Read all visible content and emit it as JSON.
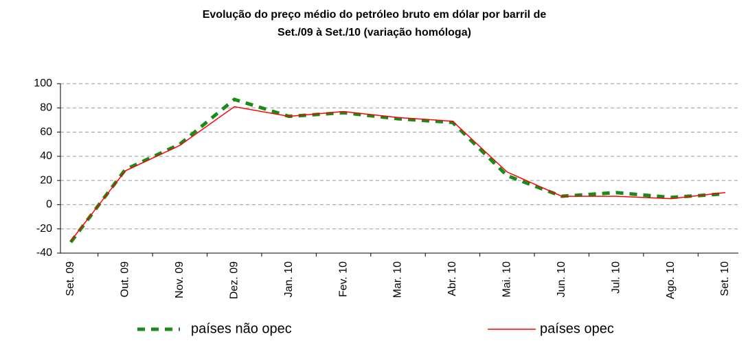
{
  "chart_data": {
    "type": "line",
    "title": [
      "Evolução do preço médio do petróleo bruto em dólar por barril de",
      "Set./09 à Set./10 (variação homóloga)"
    ],
    "categories": [
      "Set. 09",
      "Out. 09",
      "Nov. 09",
      "Dez. 09",
      "Jan. 10",
      "Fev. 10",
      "Mar. 10",
      "Abr. 10",
      "Mai. 10",
      "Jun. 10",
      "Jul. 10",
      "Ago. 10",
      "Set. 10"
    ],
    "series": [
      {
        "name": "países não opec",
        "color": "#1a8a1a",
        "dashed": true,
        "values": [
          -31,
          29,
          50,
          87,
          73,
          76,
          71,
          68,
          24,
          7,
          10,
          6,
          9
        ]
      },
      {
        "name": "países opec",
        "color": "#ff0000",
        "dashed": false,
        "values": [
          -30,
          28,
          49,
          81,
          73,
          77,
          72,
          69,
          27,
          7,
          7,
          5,
          10
        ]
      }
    ],
    "ylim": [
      -40,
      100
    ],
    "yticks": [
      -40,
      -20,
      0,
      20,
      40,
      60,
      80,
      100
    ],
    "grid": true
  }
}
